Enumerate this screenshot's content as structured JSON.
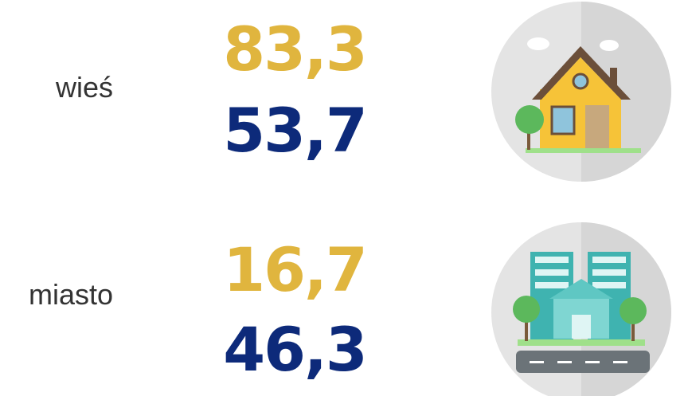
{
  "rows": [
    {
      "label": "wieś",
      "values": [
        "83,3",
        "53,7"
      ]
    },
    {
      "label": "miasto",
      "values": [
        "16,7",
        "46,3"
      ]
    }
  ]
}
